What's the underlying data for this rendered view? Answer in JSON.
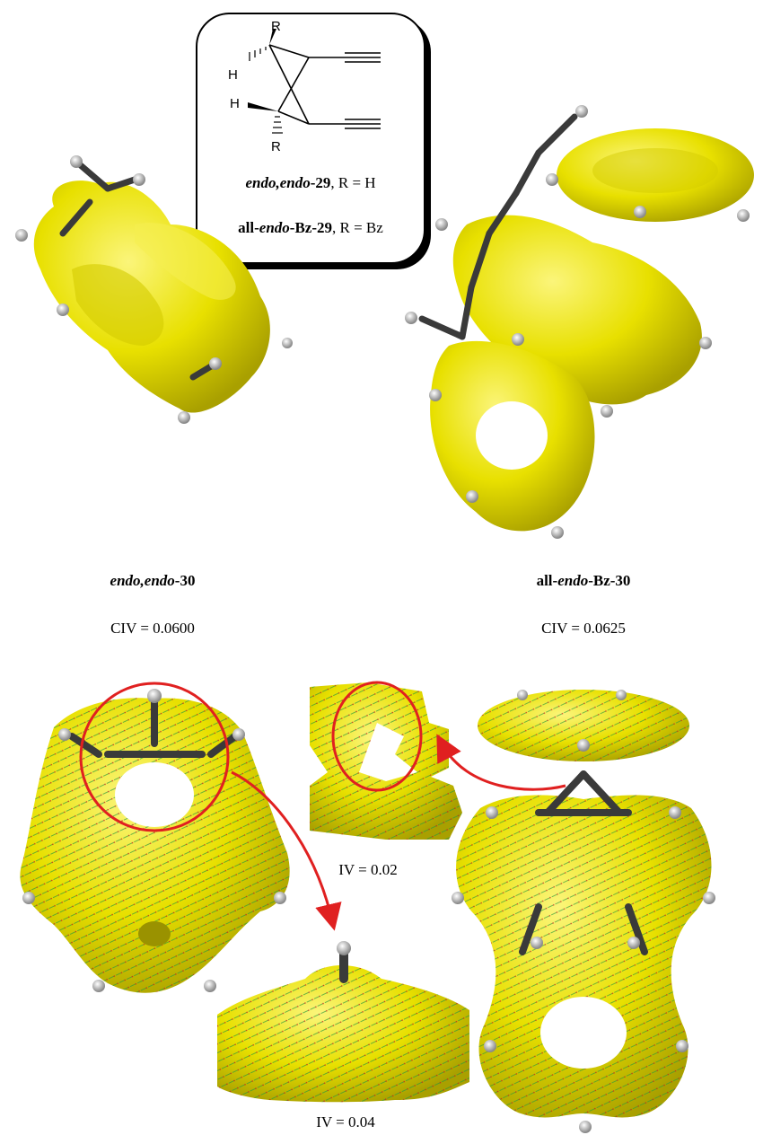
{
  "structure_box": {
    "atom_labels": {
      "R_top": "R",
      "H_top": "H",
      "H_mid": "H",
      "R_bottom": "R"
    },
    "caption1": {
      "prefix": "endo,endo",
      "suffix": "-29",
      "rest": ", R = H"
    },
    "caption2": {
      "prefix_bold": "all-",
      "italic": "endo",
      "suffix": "-Bz-29",
      "rest": ", R = Bz"
    }
  },
  "molecule_left": {
    "name": {
      "italic": "endo,endo",
      "suffix": "-30"
    },
    "civ": "CIV = 0.0600"
  },
  "molecule_right": {
    "name": {
      "prefix": "all-",
      "italic": "endo",
      "suffix": "-Bz-30"
    },
    "civ": "CIV = 0.0625"
  },
  "inset_iv_upper": "IV = 0.02",
  "inset_iv_lower": "IV = 0.04",
  "colors": {
    "surface_yellow": "#e8e000",
    "surface_shade": "#a9a000",
    "arrow_red": "#e02020",
    "bond_dark": "#3a3a3a",
    "vector_green": "#2a9a3a"
  }
}
